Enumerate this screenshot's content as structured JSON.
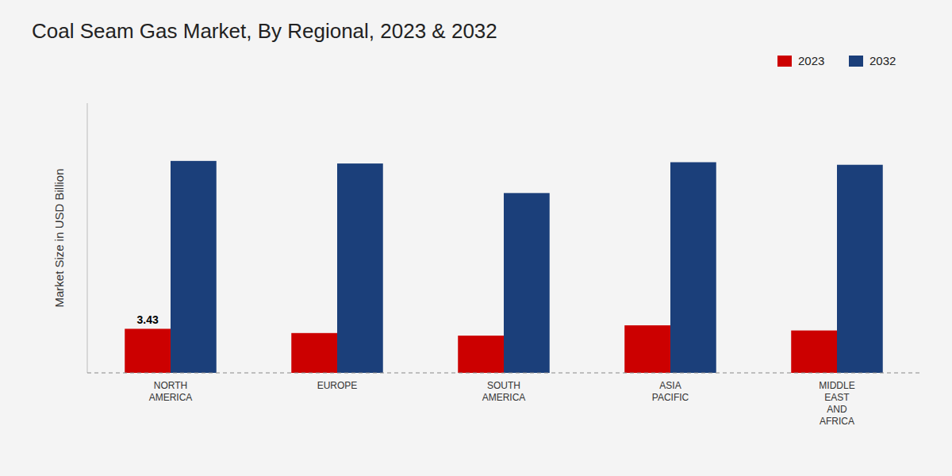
{
  "chart_data": {
    "type": "bar",
    "title": "Coal Seam Gas Market, By Regional, 2023 & 2032",
    "categories": [
      "NORTH\nAMERICA",
      "EUROPE",
      "SOUTH\nAMERICA",
      "ASIA\nPACIFIC",
      "MIDDLE\nEAST\nAND\nAFRICA"
    ],
    "series": [
      {
        "name": "2023",
        "color": "#cc0000",
        "values": [
          3.43,
          3.1,
          2.9,
          3.7,
          3.3
        ]
      },
      {
        "name": "2032",
        "color": "#1b3f7a",
        "values": [
          16.5,
          16.3,
          14.0,
          16.4,
          16.2
        ]
      }
    ],
    "ylabel": "Market Size in USD Billion",
    "ylim": [
      0,
      21
    ],
    "yticks": [],
    "tick_labels": "x",
    "grid": false,
    "legend": "upper right",
    "annotations": [
      {
        "text": "3.43",
        "x": "NORTH\nAMERICA",
        "series": "2023",
        "y": 3.43
      }
    ]
  }
}
